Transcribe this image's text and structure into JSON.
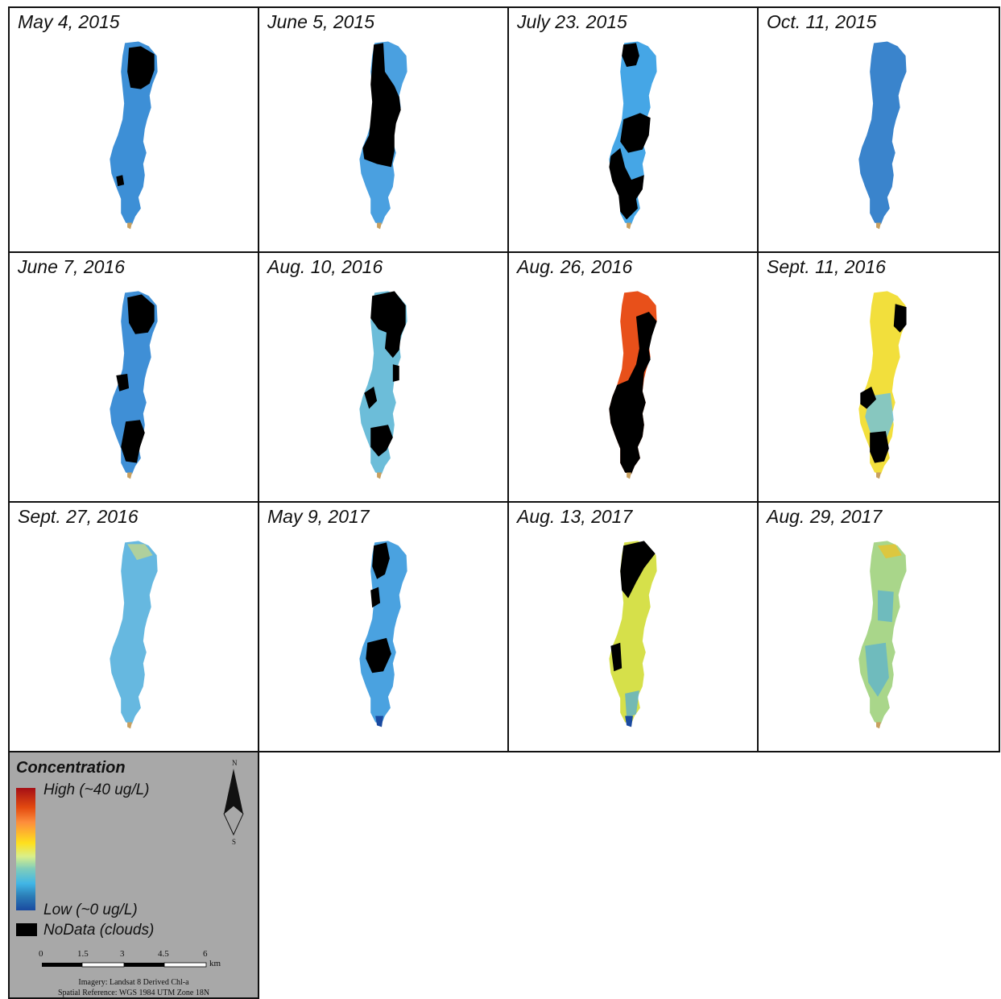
{
  "figure": {
    "panels": [
      {
        "label": "May 4, 2015",
        "fill": "#3d8fd6",
        "clouds": "north-east lobe"
      },
      {
        "label": "June 5, 2015",
        "fill": "#4aa0e0",
        "clouds": "central band"
      },
      {
        "label": "July 23. 2015",
        "fill": "#45a6e6",
        "clouds": "scattered north, middle and south"
      },
      {
        "label": "Oct. 11, 2015",
        "fill": "#3a84cc",
        "clouds": "none"
      },
      {
        "label": "June 7, 2016",
        "fill": "#3f8fd6",
        "clouds": "north and south patches"
      },
      {
        "label": "Aug. 10, 2016",
        "fill": "#6cbdd9",
        "clouds": "most of the lake"
      },
      {
        "label": "Aug. 26, 2016",
        "fill": "#e8501a",
        "clouds": "most of the lake"
      },
      {
        "label": "Sept. 11, 2016",
        "fill": "#f2df3c",
        "clouds": "east edge and south"
      },
      {
        "label": "Sept. 27, 2016",
        "fill": "#66b8e0",
        "clouds": "none"
      },
      {
        "label": "May 9, 2017",
        "fill": "#4aa2e0",
        "clouds": "north and middle patches"
      },
      {
        "label": "Aug. 13, 2017",
        "fill": "#d6e04a",
        "clouds": "north-west portion"
      },
      {
        "label": "Aug. 29, 2017",
        "fill": "#a9d68a",
        "clouds": "none"
      }
    ]
  },
  "legend": {
    "title": "Concentration",
    "high_label": "High (~40 ug/L)",
    "low_label": "Low (~0 ug/L)",
    "nodata_label": "NoData (clouds)",
    "north_label": "N",
    "south_label": "S",
    "scale_ticks": [
      "0",
      "1.5",
      "3",
      "4.5",
      "6"
    ],
    "scale_unit": "km",
    "credit_line1": "Imagery: Landsat 8 Derived Chl-a",
    "credit_line2": "Spatial Reference: WGS 1984 UTM Zone 18N",
    "colors": {
      "high": "#a50f15",
      "mid_high": "#fd8d3c",
      "mid": "#fee01d",
      "mid_low": "#7fcdbb",
      "low": "#1a4aa0",
      "nodata": "#000000"
    }
  }
}
